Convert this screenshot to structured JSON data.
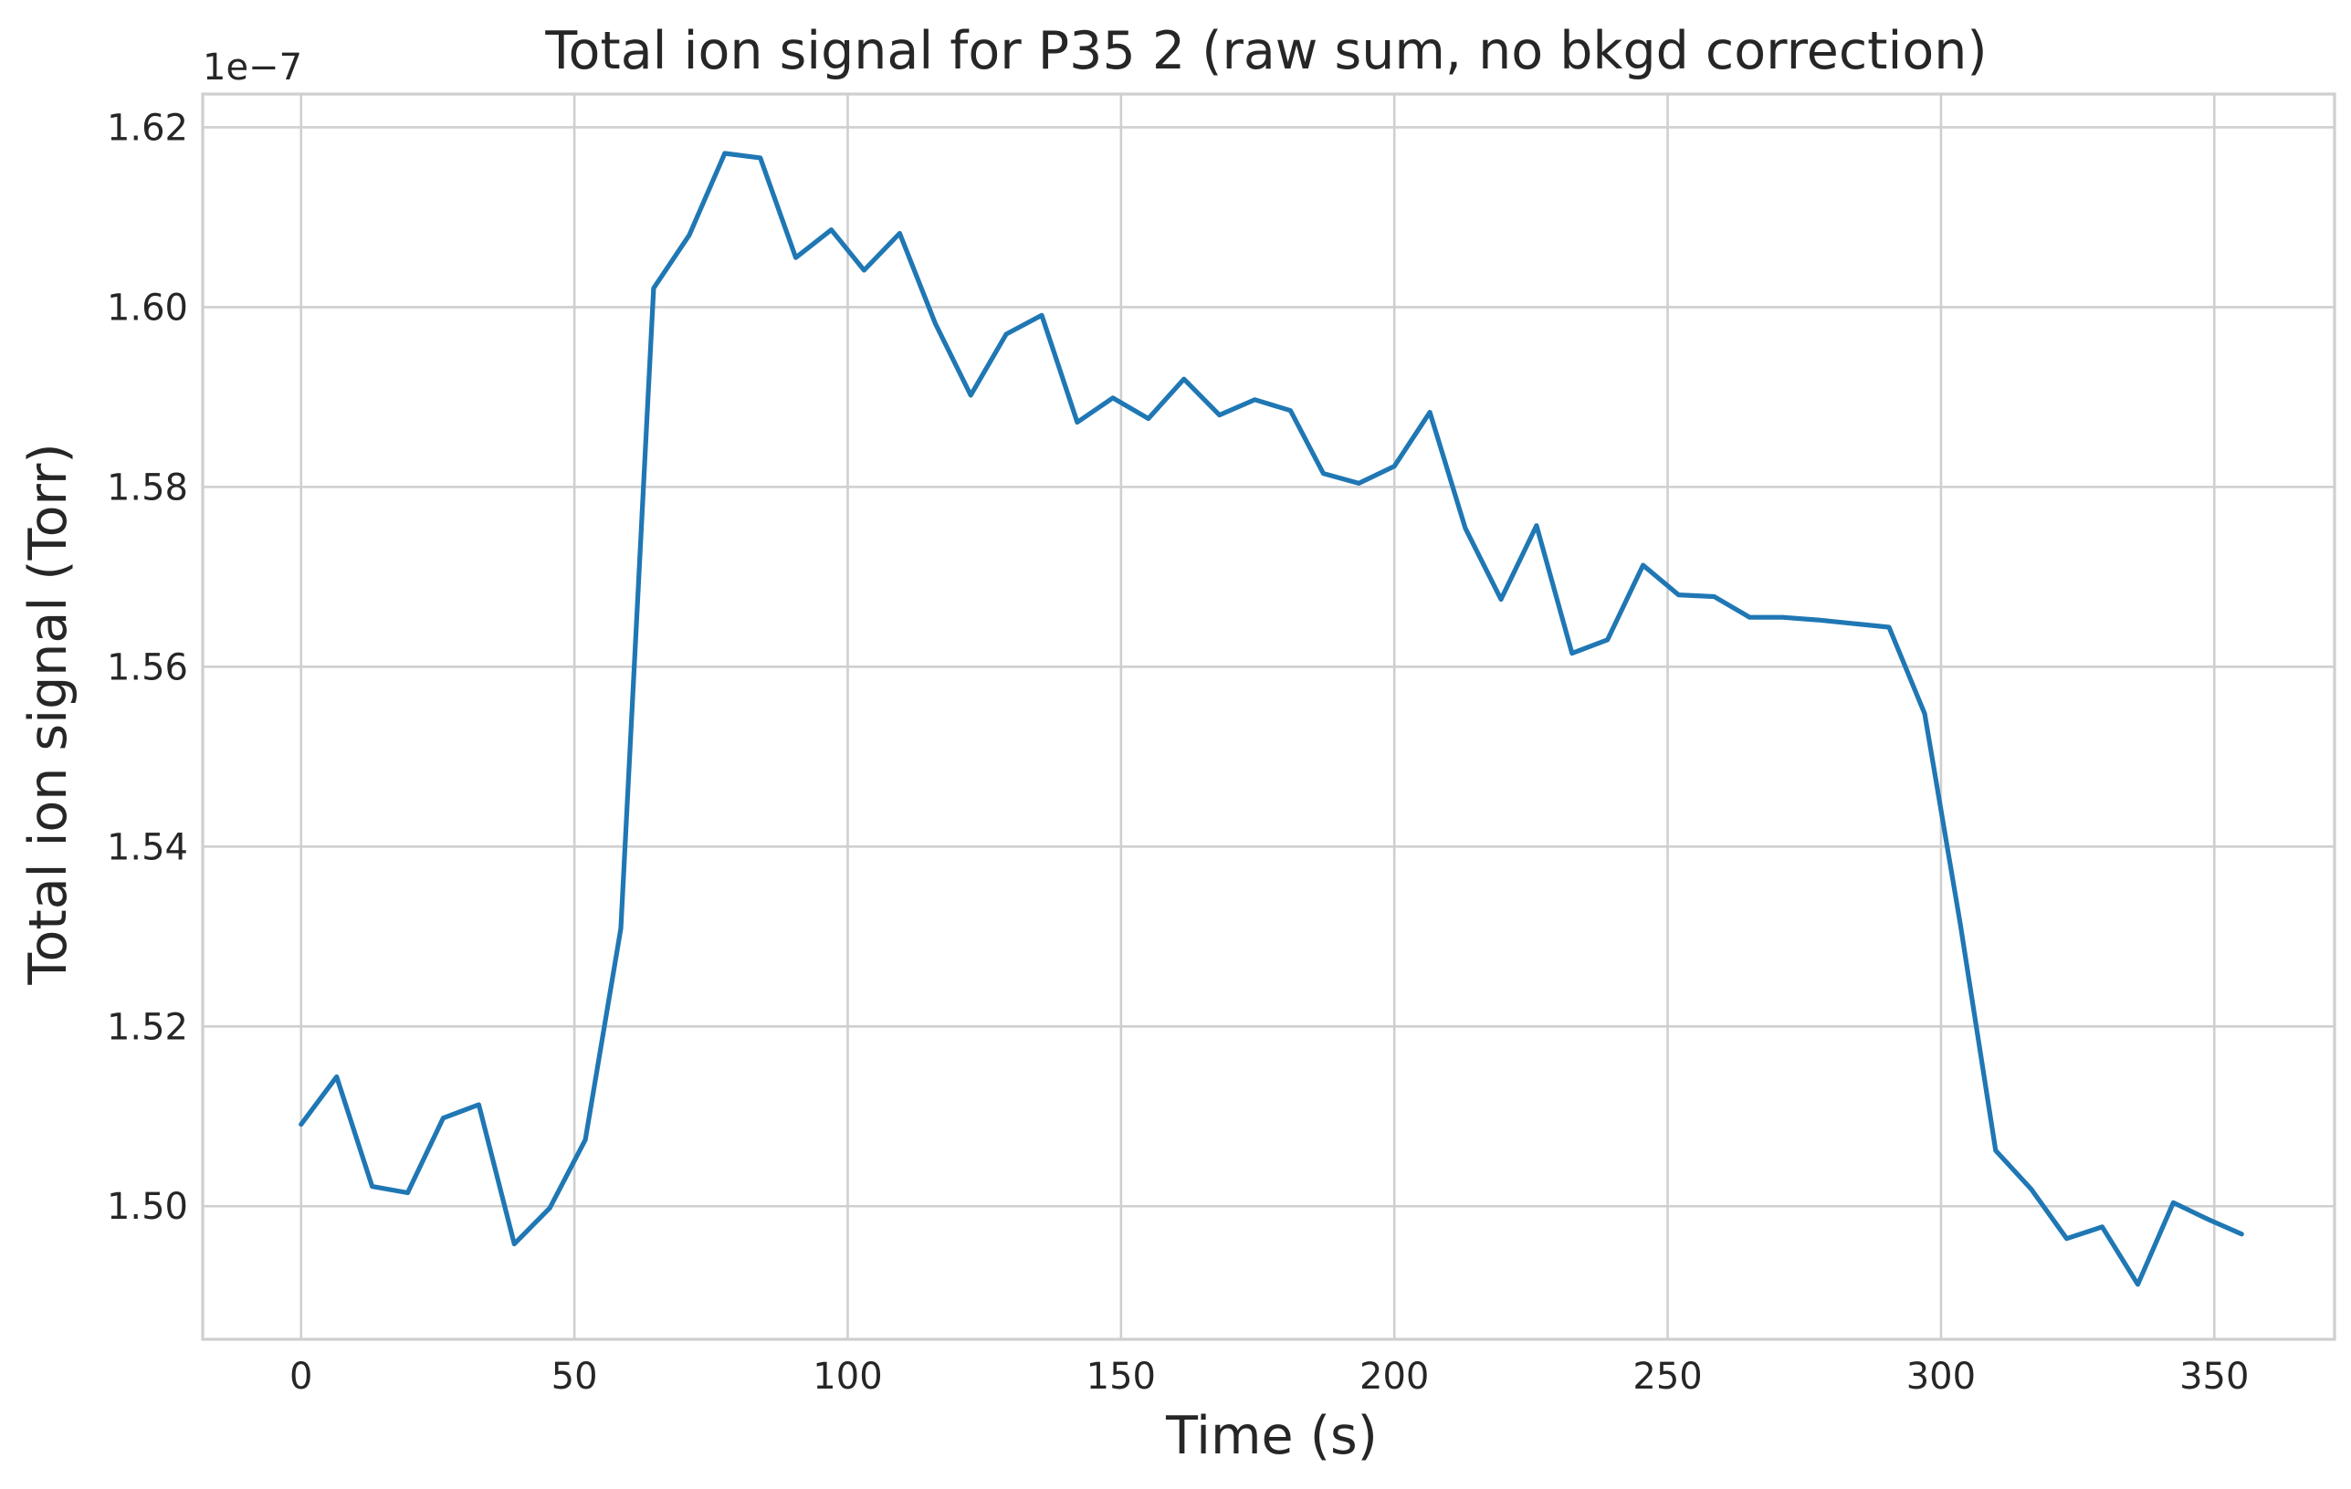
{
  "chart_data": {
    "type": "line",
    "title": "Total ion signal for P35 2 (raw sum, no bkgd correction)",
    "xlabel": "Time (s)",
    "ylabel": "Total ion signal (Torr)",
    "y_offset_label": "1e−7",
    "xlim": [
      -18,
      372
    ],
    "ylim": [
      1.4852,
      1.6237
    ],
    "x_ticks": [
      0,
      50,
      100,
      150,
      200,
      250,
      300,
      350
    ],
    "x_tick_labels": [
      "0",
      "50",
      "100",
      "150",
      "200",
      "250",
      "300",
      "350"
    ],
    "y_ticks": [
      1.5,
      1.52,
      1.54,
      1.56,
      1.58,
      1.6,
      1.62
    ],
    "y_tick_labels": [
      "1.50",
      "1.52",
      "1.54",
      "1.56",
      "1.58",
      "1.60",
      "1.62"
    ],
    "grid": true,
    "colors": {
      "line": "#1f77b4",
      "grid": "#cfcfcf",
      "text": "#262626",
      "background": "#ffffff"
    },
    "series": [
      {
        "x": [
          0,
          6.5,
          13,
          19.5,
          26,
          32.5,
          39,
          45.5,
          52,
          58.5,
          64.5,
          71,
          77.5,
          84,
          90.5,
          97,
          103,
          109.5,
          116,
          122.5,
          129,
          135.5,
          142,
          148.5,
          155,
          161.5,
          168,
          174.5,
          181,
          187,
          193.5,
          200,
          206.5,
          213,
          219.5,
          226,
          232.5,
          239,
          245.5,
          252,
          258.5,
          265,
          271,
          277.5,
          284,
          290.5,
          297,
          303.5,
          310,
          316.5,
          323,
          329.5,
          336,
          342.5,
          349,
          355
        ],
        "values": [
          1.5091,
          1.5144,
          1.5022,
          1.5015,
          1.5098,
          1.5113,
          1.4958,
          1.4998,
          1.5074,
          1.5309,
          1.6021,
          1.608,
          1.6171,
          1.6166,
          1.6055,
          1.6086,
          1.6041,
          1.6082,
          1.5982,
          1.5902,
          1.597,
          1.5991,
          1.5872,
          1.5899,
          1.5876,
          1.592,
          1.588,
          1.5897,
          1.5885,
          1.5815,
          1.5804,
          1.5823,
          1.5883,
          1.5754,
          1.5675,
          1.5757,
          1.5615,
          1.563,
          1.5713,
          1.568,
          1.5678,
          1.5655,
          1.5655,
          1.5652,
          1.5648,
          1.5644,
          1.5548,
          1.5315,
          1.5062,
          1.5019,
          1.4964,
          1.4977,
          1.4913,
          1.5004,
          1.4985,
          1.4969
        ]
      }
    ]
  }
}
